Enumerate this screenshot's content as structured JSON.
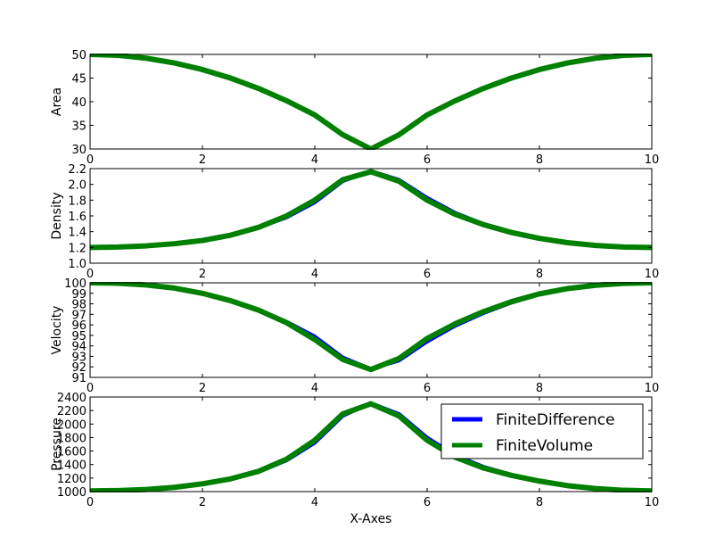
{
  "figure": {
    "xlabel": "X-Axes",
    "legend": {
      "placement": "inside-lower-panel-right",
      "entries": [
        {
          "name": "FiniteDifference",
          "color": "#0000ff"
        },
        {
          "name": "FiniteVolume",
          "color": "#008000"
        }
      ]
    }
  },
  "chart_data": [
    {
      "type": "line",
      "title": "",
      "xlabel": "",
      "ylabel": "Area",
      "xlim": [
        0,
        10
      ],
      "ylim": [
        30,
        50
      ],
      "xticks": [
        0,
        2,
        4,
        6,
        8,
        10
      ],
      "yticks": [
        30,
        35,
        40,
        45,
        50
      ],
      "grid": false,
      "series": [
        {
          "name": "FiniteDifference",
          "color": "#0000ff",
          "x": [
            0,
            0.5,
            1,
            1.5,
            2,
            2.5,
            3,
            3.5,
            4,
            4.5,
            5,
            5.5,
            6,
            6.5,
            7,
            7.5,
            8,
            8.5,
            9,
            9.5,
            10
          ],
          "y": [
            50,
            49.8,
            49.2,
            48.2,
            46.8,
            45.0,
            42.8,
            40.2,
            37.2,
            33.0,
            30.0,
            33.0,
            37.2,
            40.2,
            42.8,
            45.0,
            46.8,
            48.2,
            49.2,
            49.8,
            50
          ]
        },
        {
          "name": "FiniteVolume",
          "color": "#008000",
          "x": [
            0,
            0.5,
            1,
            1.5,
            2,
            2.5,
            3,
            3.5,
            4,
            4.5,
            5,
            5.5,
            6,
            6.5,
            7,
            7.5,
            8,
            8.5,
            9,
            9.5,
            10
          ],
          "y": [
            50,
            49.8,
            49.2,
            48.2,
            46.8,
            45.0,
            42.8,
            40.2,
            37.2,
            33.0,
            30.0,
            33.0,
            37.2,
            40.2,
            42.8,
            45.0,
            46.8,
            48.2,
            49.2,
            49.8,
            50
          ]
        }
      ]
    },
    {
      "type": "line",
      "title": "",
      "xlabel": "",
      "ylabel": "Density",
      "xlim": [
        0,
        10
      ],
      "ylim": [
        1.0,
        2.2
      ],
      "xticks": [
        0,
        2,
        4,
        6,
        8,
        10
      ],
      "yticks": [
        "1.0",
        "1.2",
        "1.4",
        "1.6",
        "1.8",
        "2.0",
        "2.2"
      ],
      "grid": false,
      "series": [
        {
          "name": "FiniteDifference",
          "color": "#0000ff",
          "x": [
            0,
            0.5,
            1,
            1.5,
            2,
            2.5,
            3,
            3.5,
            4,
            4.5,
            5,
            5.5,
            6,
            6.5,
            7,
            7.5,
            8,
            8.5,
            9,
            9.5,
            10
          ],
          "y": [
            1.2,
            1.205,
            1.22,
            1.245,
            1.285,
            1.35,
            1.45,
            1.58,
            1.77,
            2.04,
            2.17,
            2.06,
            1.83,
            1.64,
            1.5,
            1.4,
            1.32,
            1.26,
            1.225,
            1.205,
            1.2
          ]
        },
        {
          "name": "FiniteVolume",
          "color": "#008000",
          "x": [
            0,
            0.5,
            1,
            1.5,
            2,
            2.5,
            3,
            3.5,
            4,
            4.5,
            5,
            5.5,
            6,
            6.5,
            7,
            7.5,
            8,
            8.5,
            9,
            9.5,
            10
          ],
          "y": [
            1.2,
            1.205,
            1.22,
            1.247,
            1.288,
            1.355,
            1.455,
            1.6,
            1.8,
            2.06,
            2.16,
            2.04,
            1.8,
            1.62,
            1.49,
            1.39,
            1.315,
            1.26,
            1.225,
            1.205,
            1.2
          ]
        }
      ]
    },
    {
      "type": "line",
      "title": "",
      "xlabel": "",
      "ylabel": "Velocity",
      "xlim": [
        0,
        10
      ],
      "ylim": [
        91,
        100
      ],
      "xticks": [
        0,
        2,
        4,
        6,
        8,
        10
      ],
      "yticks": [
        91,
        92,
        93,
        94,
        95,
        96,
        97,
        98,
        99,
        100
      ],
      "grid": false,
      "series": [
        {
          "name": "FiniteDifference",
          "color": "#0000ff",
          "x": [
            0,
            0.5,
            1,
            1.5,
            2,
            2.5,
            3,
            3.5,
            4,
            4.5,
            5,
            5.5,
            6,
            6.5,
            7,
            7.5,
            8,
            8.5,
            9,
            9.5,
            10
          ],
          "y": [
            100,
            99.96,
            99.8,
            99.5,
            99.0,
            98.3,
            97.4,
            96.3,
            94.9,
            92.9,
            91.8,
            92.6,
            94.4,
            95.9,
            97.1,
            98.1,
            98.9,
            99.4,
            99.75,
            99.94,
            100
          ]
        },
        {
          "name": "FiniteVolume",
          "color": "#008000",
          "x": [
            0,
            0.5,
            1,
            1.5,
            2,
            2.5,
            3,
            3.5,
            4,
            4.5,
            5,
            5.5,
            6,
            6.5,
            7,
            7.5,
            8,
            8.5,
            9,
            9.5,
            10
          ],
          "y": [
            100,
            99.96,
            99.8,
            99.5,
            99.0,
            98.3,
            97.4,
            96.2,
            94.6,
            92.7,
            91.75,
            92.8,
            94.7,
            96.1,
            97.25,
            98.2,
            98.95,
            99.45,
            99.77,
            99.95,
            100
          ]
        }
      ]
    },
    {
      "type": "line",
      "title": "",
      "xlabel": "X-Axes",
      "ylabel": "Pressure",
      "xlim": [
        0,
        10
      ],
      "ylim": [
        1000,
        2400
      ],
      "xticks": [
        0,
        2,
        4,
        6,
        8,
        10
      ],
      "yticks": [
        1000,
        1200,
        1400,
        1600,
        1800,
        2000,
        2200,
        2400
      ],
      "grid": false,
      "series": [
        {
          "name": "FiniteDifference",
          "color": "#0000ff",
          "x": [
            0,
            0.5,
            1,
            1.5,
            2,
            2.5,
            3,
            3.5,
            4,
            4.5,
            5,
            5.5,
            6,
            6.5,
            7,
            7.5,
            8,
            8.5,
            9,
            9.5,
            10
          ],
          "y": [
            1010,
            1015,
            1030,
            1060,
            1110,
            1180,
            1290,
            1460,
            1720,
            2120,
            2310,
            2150,
            1800,
            1540,
            1370,
            1250,
            1160,
            1090,
            1045,
            1020,
            1010
          ]
        },
        {
          "name": "FiniteVolume",
          "color": "#008000",
          "x": [
            0,
            0.5,
            1,
            1.5,
            2,
            2.5,
            3,
            3.5,
            4,
            4.5,
            5,
            5.5,
            6,
            6.5,
            7,
            7.5,
            8,
            8.5,
            9,
            9.5,
            10
          ],
          "y": [
            1010,
            1015,
            1032,
            1063,
            1115,
            1188,
            1300,
            1480,
            1760,
            2150,
            2300,
            2120,
            1760,
            1510,
            1350,
            1240,
            1155,
            1088,
            1044,
            1019,
            1010
          ]
        }
      ]
    }
  ]
}
